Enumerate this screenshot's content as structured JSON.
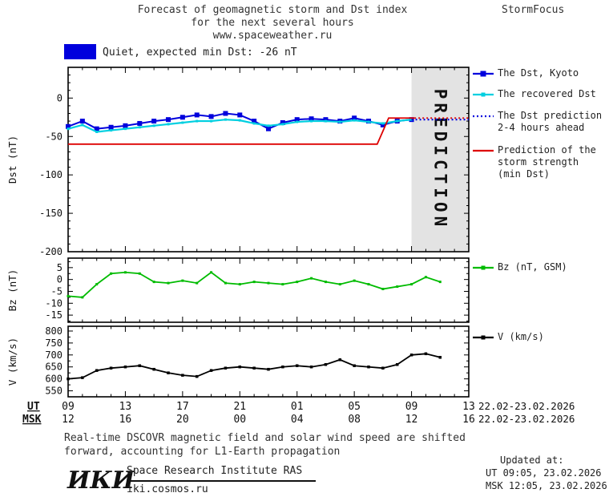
{
  "header": {
    "title_lines": [
      "Forecast of geomagnetic storm and Dst index",
      "for the next several hours",
      "www.spaceweather.ru"
    ],
    "brand": "StormFocus"
  },
  "status": {
    "label": "Quiet, expected min Dst: -26 nT",
    "level_color": "#0000dd"
  },
  "legend": {
    "items": [
      {
        "lines": [
          "The Dst, Kyoto"
        ],
        "color": "#0000dd",
        "style": "solid",
        "marker": 7
      },
      {
        "lines": [
          "The recovered Dst"
        ],
        "color": "#00cfe0",
        "style": "solid",
        "marker": 5
      },
      {
        "lines": [
          "The Dst prediction",
          "2-4 hours ahead"
        ],
        "color": "#0000dd",
        "style": "dotted",
        "marker": 0
      },
      {
        "lines": [
          "Prediction of the",
          "storm strength",
          "(min Dst)"
        ],
        "color": "#dd0000",
        "style": "solid",
        "marker": 0
      },
      {
        "lines": [
          "Bz (nT, GSM)"
        ],
        "color": "#00bb00",
        "style": "solid",
        "marker": 5
      },
      {
        "lines": [
          "V (km/s)"
        ],
        "color": "#000000",
        "style": "solid",
        "marker": 5
      }
    ]
  },
  "axis": {
    "ut_label": "UT",
    "msk_label": "MSK",
    "ut_ticks": [
      "09",
      "13",
      "17",
      "21",
      "01",
      "05",
      "09",
      "13"
    ],
    "msk_ticks": [
      "12",
      "16",
      "20",
      "00",
      "04",
      "08",
      "12",
      "16"
    ],
    "ut_date_range": "22.02-23.02.2026",
    "msk_date_range": "22.02-23.02.2026"
  },
  "footer": {
    "note_lines": [
      "Real-time DSCOVR magnetic field and solar wind speed are shifted",
      "forward, accounting for L1-Earth propagation"
    ],
    "updated_label": "Updated at:",
    "updated_ut": "UT  09:05, 23.02.2026",
    "updated_msk": "MSK 12:05, 23.02.2026",
    "logo": "ИКИ",
    "institute": "Space Research Institute RAS",
    "site": "iki.cosmos.ru"
  },
  "chart_data": [
    {
      "type": "line",
      "title": "Dst index, observed and predicted",
      "ylabel": "Dst (nT)",
      "ylim": [
        -200,
        40
      ],
      "yticks": [
        0,
        -50,
        -100,
        -150,
        -200
      ],
      "yminor": 10,
      "xlim": [
        9,
        37
      ],
      "xticks": [
        9,
        13,
        17,
        21,
        25,
        29,
        33,
        37
      ],
      "prediction_zone": {
        "from": 33,
        "to": 37,
        "label": "PREDICTION",
        "fill": "#e3e3e3",
        "text_color": "#b8b8b8"
      },
      "series": [
        {
          "name": "The Dst, Kyoto",
          "color": "#0000dd",
          "style": "solid",
          "width": 2,
          "marker": 6,
          "x": [
            9,
            10,
            11,
            12,
            13,
            14,
            15,
            16,
            17,
            18,
            19,
            20,
            21,
            22,
            23,
            24,
            25,
            26,
            27,
            28,
            29,
            30,
            31,
            32,
            33
          ],
          "y": [
            -37,
            -30,
            -40,
            -38,
            -36,
            -33,
            -30,
            -28,
            -25,
            -22,
            -24,
            -20,
            -22,
            -30,
            -40,
            -32,
            -28,
            -27,
            -28,
            -30,
            -26,
            -30,
            -35,
            -30,
            -28
          ]
        },
        {
          "name": "The recovered Dst",
          "color": "#00cfe0",
          "style": "solid",
          "width": 2.2,
          "marker": 3,
          "x": [
            9,
            10,
            11,
            12,
            13,
            14,
            15,
            16,
            17,
            18,
            19,
            20,
            21,
            22,
            23,
            24,
            25,
            26,
            27,
            28,
            29,
            30,
            31,
            32,
            33
          ],
          "y": [
            -40,
            -35,
            -44,
            -42,
            -40,
            -38,
            -36,
            -34,
            -32,
            -30,
            -30,
            -28,
            -29,
            -33,
            -36,
            -34,
            -31,
            -30,
            -30,
            -31,
            -29,
            -31,
            -33,
            -30,
            -28
          ]
        },
        {
          "name": "The Dst prediction 2-4 hours ahead",
          "color": "#0000dd",
          "style": "dotted",
          "width": 2.2,
          "marker": 0,
          "x": [
            33,
            37
          ],
          "y": [
            -28,
            -28
          ]
        },
        {
          "name": "Prediction of the storm strength (min Dst)",
          "color": "#dd0000",
          "style": "solid",
          "width": 1.8,
          "marker": 0,
          "x": [
            9,
            30.6,
            31.4,
            33.2
          ],
          "y": [
            -60,
            -60,
            -26,
            -26
          ]
        },
        {
          "name": "Prediction of the storm strength (forecast window)",
          "color": "#dd0000",
          "style": "dotted",
          "width": 1.8,
          "marker": 0,
          "x": [
            33.2,
            37
          ],
          "y": [
            -26,
            -26
          ]
        }
      ]
    },
    {
      "type": "line",
      "title": "Bz component, GSM",
      "ylabel": "Bz (nT)",
      "ylim": [
        -18,
        9
      ],
      "yticks": [
        5,
        0,
        -5,
        -10,
        -15
      ],
      "yminor": 2.5,
      "xlim": [
        9,
        37
      ],
      "xticks": [
        9,
        13,
        17,
        21,
        25,
        29,
        33,
        37
      ],
      "series": [
        {
          "name": "Bz (nT, GSM)",
          "color": "#00bb00",
          "style": "solid",
          "width": 1.8,
          "marker": 3,
          "x": [
            9,
            10,
            11,
            12,
            13,
            14,
            15,
            16,
            17,
            18,
            19,
            20,
            21,
            22,
            23,
            24,
            25,
            26,
            27,
            28,
            29,
            30,
            31,
            32,
            33,
            34,
            35
          ],
          "y": [
            -7,
            -7.5,
            -2,
            2.5,
            3,
            2.5,
            -1,
            -1.5,
            -0.5,
            -1.5,
            3,
            -1.5,
            -2,
            -1,
            -1.5,
            -2,
            -1,
            0.5,
            -1,
            -2,
            -0.5,
            -2,
            -4,
            -3,
            -2,
            1,
            -1
          ]
        }
      ]
    },
    {
      "type": "line",
      "title": "Solar wind speed",
      "ylabel": "V (km/s)",
      "ylim": [
        525,
        820
      ],
      "yticks": [
        800,
        750,
        700,
        650,
        600,
        550
      ],
      "yminor": 25,
      "xlim": [
        9,
        37
      ],
      "xticks": [
        9,
        13,
        17,
        21,
        25,
        29,
        33,
        37
      ],
      "series": [
        {
          "name": "V (km/s)",
          "color": "#000000",
          "style": "solid",
          "width": 1.8,
          "marker": 3.5,
          "x": [
            9,
            10,
            11,
            12,
            13,
            14,
            15,
            16,
            17,
            18,
            19,
            20,
            21,
            22,
            23,
            24,
            25,
            26,
            27,
            28,
            29,
            30,
            31,
            32,
            33,
            34,
            35
          ],
          "y": [
            600,
            605,
            635,
            645,
            650,
            655,
            640,
            625,
            615,
            610,
            635,
            645,
            650,
            645,
            640,
            650,
            655,
            650,
            660,
            680,
            655,
            650,
            645,
            660,
            700,
            705,
            690
          ]
        }
      ]
    }
  ]
}
